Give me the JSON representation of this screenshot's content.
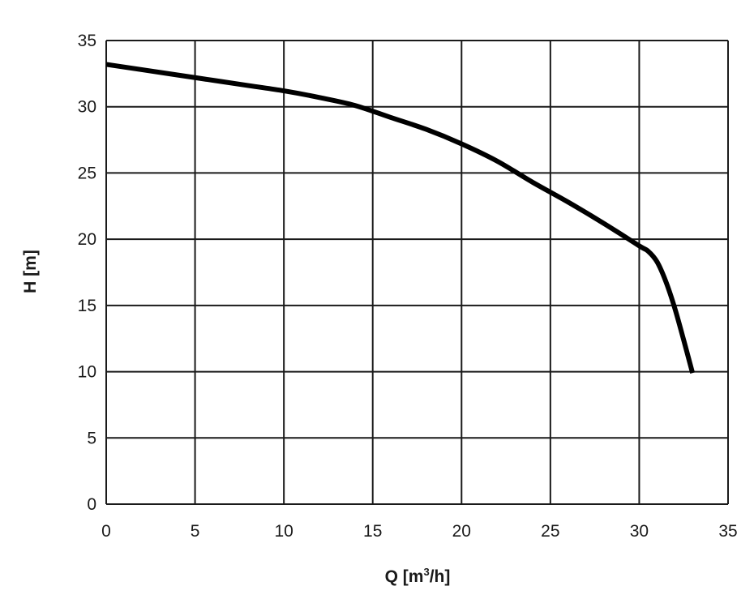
{
  "chart_data": {
    "type": "line",
    "title": "",
    "xlabel": "Q [m³/h]",
    "ylabel": "H [m]",
    "xlim": [
      0,
      35
    ],
    "ylim": [
      0,
      35
    ],
    "x_ticks": [
      0,
      5,
      10,
      15,
      20,
      25,
      30,
      35
    ],
    "y_ticks": [
      0,
      5,
      10,
      15,
      20,
      25,
      30,
      35
    ],
    "grid": true,
    "legend": "none",
    "series": [
      {
        "color": "#000000",
        "x": [
          0,
          2,
          5,
          8,
          10,
          12,
          14,
          16,
          18,
          20,
          22,
          24,
          26,
          28,
          30,
          30.5,
          31,
          31.5,
          32,
          32.5,
          33
        ],
        "y": [
          33.2,
          32.8,
          32.2,
          31.6,
          31.2,
          30.7,
          30.1,
          29.2,
          28.3,
          27.2,
          25.9,
          24.3,
          22.8,
          21.2,
          19.5,
          19.1,
          18.3,
          16.8,
          14.8,
          12.4,
          9.9
        ]
      }
    ]
  }
}
